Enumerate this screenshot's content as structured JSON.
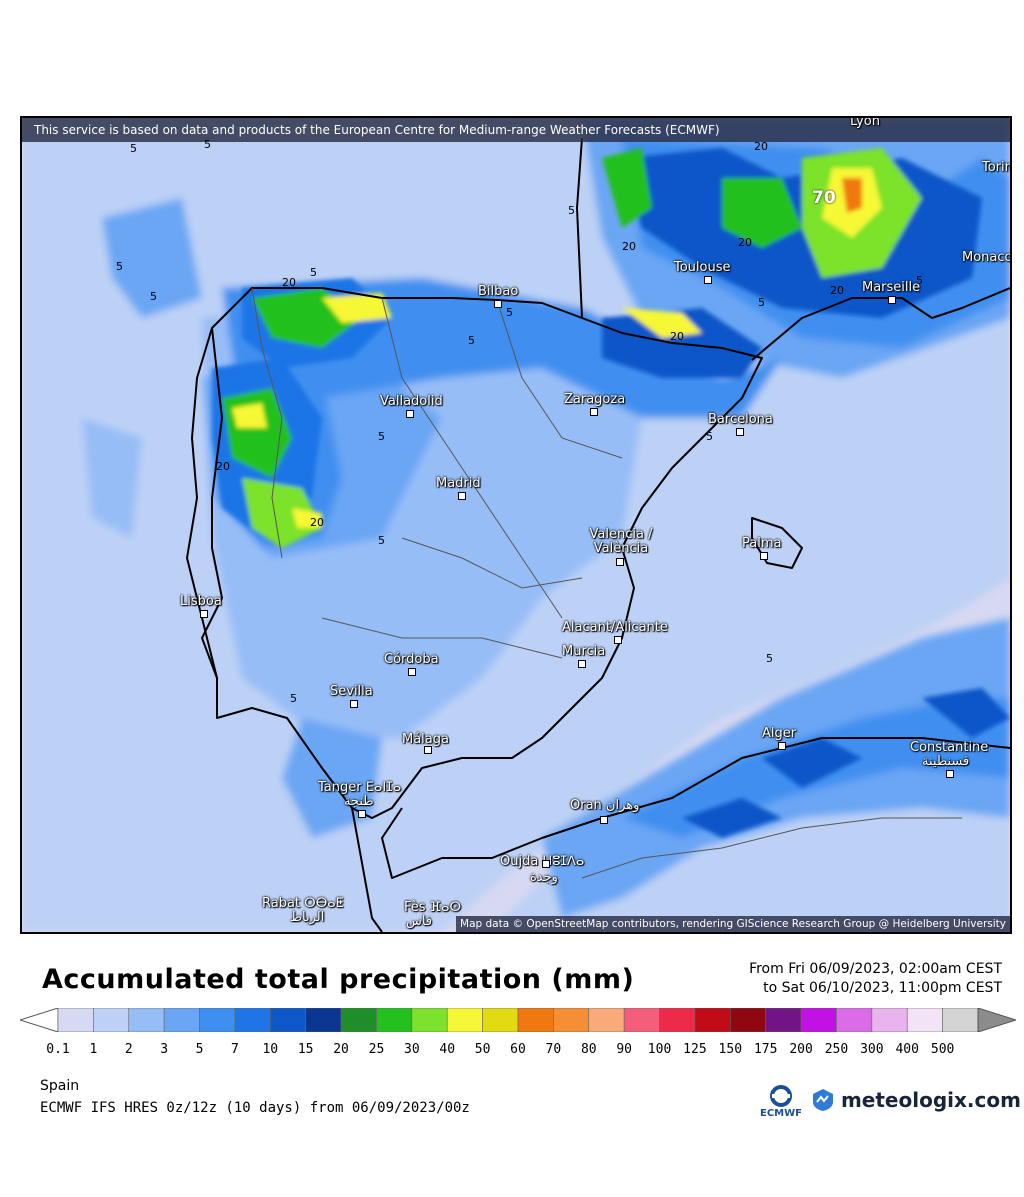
{
  "map": {
    "banner": "This service is based on data and products of the European Centre for Medium-range Weather Forecasts (ECMWF)",
    "attribution": "Map data © OpenStreetMap contributors, rendering GIScience Research Group @ Heidelberg University",
    "cities": [
      {
        "name": "Lyon",
        "id": "lyon"
      },
      {
        "name": "Torin",
        "id": "torino"
      },
      {
        "name": "Monaco",
        "id": "monaco"
      },
      {
        "name": "Toulouse",
        "id": "toulouse"
      },
      {
        "name": "Marseille",
        "id": "marseille"
      },
      {
        "name": "Bilbao",
        "id": "bilbao"
      },
      {
        "name": "Zaragoza",
        "id": "zaragoza"
      },
      {
        "name": "Barcelona",
        "id": "barcelona"
      },
      {
        "name": "Valladolid",
        "id": "valladolid"
      },
      {
        "name": "Madrid",
        "id": "madrid"
      },
      {
        "name": "Valencia / València",
        "id": "valencia"
      },
      {
        "name": "Palma",
        "id": "palma"
      },
      {
        "name": "Lisboa",
        "id": "lisboa"
      },
      {
        "name": "Alacant/Alicante",
        "id": "alicante"
      },
      {
        "name": "Murcia",
        "id": "murcia"
      },
      {
        "name": "Córdoba",
        "id": "cordoba"
      },
      {
        "name": "Sevilla",
        "id": "sevilla"
      },
      {
        "name": "Málaga",
        "id": "malaga"
      },
      {
        "name": "Alger",
        "id": "alger"
      },
      {
        "name": "Constantine",
        "id": "constantine"
      },
      {
        "name": "قسنطينة",
        "id": "constantine-ar"
      },
      {
        "name": "Tanger ⴹⴰⵏⵊⴰ",
        "id": "tanger"
      },
      {
        "name": "طنجة",
        "id": "tanger-ar"
      },
      {
        "name": "Oran وهران",
        "id": "oran"
      },
      {
        "name": "Oujda ⵡⵓⵊⴷⴰ",
        "id": "oujda"
      },
      {
        "name": "وجدة",
        "id": "oujda-ar"
      },
      {
        "name": "Rabat ⵔⴱⴰⵟ",
        "id": "rabat"
      },
      {
        "name": "الرباط",
        "id": "rabat-ar"
      },
      {
        "name": "Fès ⴼⴰⵙ",
        "id": "fes"
      },
      {
        "name": "فاس",
        "id": "fes-ar"
      }
    ],
    "contour_labels": [
      "5",
      "5",
      "5",
      "5",
      "5",
      "5",
      "5",
      "5",
      "5",
      "5",
      "5",
      "5",
      "5",
      "5",
      "5",
      "20",
      "20",
      "20",
      "20",
      "20",
      "20",
      "20",
      "20",
      "70"
    ]
  },
  "header": {
    "title": "Accumulated total precipitation (mm)",
    "valid_from": "From Fri 06/09/2023, 02:00am CEST",
    "valid_to": "to Sat 06/10/2023, 11:00pm CEST"
  },
  "legend": {
    "ticks": [
      "0.1",
      "1",
      "2",
      "3",
      "5",
      "7",
      "10",
      "15",
      "20",
      "25",
      "30",
      "40",
      "50",
      "60",
      "70",
      "80",
      "90",
      "100",
      "125",
      "150",
      "175",
      "200",
      "250",
      "300",
      "400",
      "500"
    ],
    "colors": [
      "#d7d8f2",
      "#bcd1f5",
      "#97bdf7",
      "#6aa6f4",
      "#3f8ff0",
      "#1f74e6",
      "#0e57c9",
      "#0a3590",
      "#1f8e2a",
      "#23c01e",
      "#7ce22c",
      "#f6f736",
      "#e2db12",
      "#f07810",
      "#f68e35",
      "#f9aa7a",
      "#f55e7a",
      "#ee2a4a",
      "#c10c17",
      "#8f0711",
      "#721584",
      "#c211e3",
      "#dc6be8",
      "#e9b3ee",
      "#f2e3f6",
      "#d4d4d4"
    ]
  },
  "footer": {
    "region": "Spain",
    "model_run": "ECMWF IFS HRES 0z/12z (10 days) from  06/09/2023/00z",
    "ecmwf_logo_text": "ECMWF",
    "brand": "meteologix.com"
  }
}
